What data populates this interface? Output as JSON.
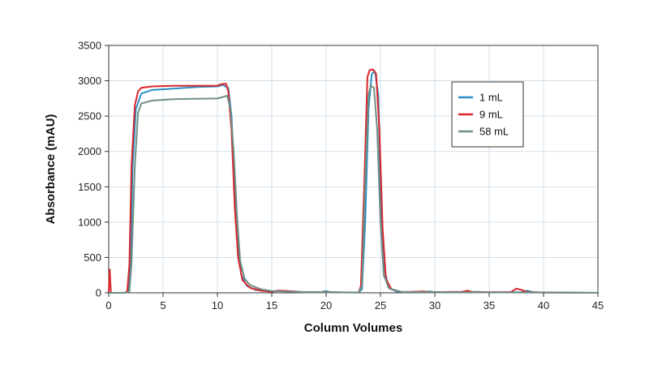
{
  "chart_data": {
    "type": "line",
    "xlabel": "Column Volumes",
    "ylabel": "Absorbance (mAU)",
    "xlim": [
      0,
      45
    ],
    "ylim": [
      0,
      3500
    ],
    "xticks": [
      0,
      5,
      10,
      15,
      20,
      25,
      30,
      35,
      40,
      45
    ],
    "yticks": [
      0,
      500,
      1000,
      1500,
      2000,
      2500,
      3000,
      3500
    ],
    "grid": true,
    "legend_position": "right",
    "series": [
      {
        "name": "1 mL",
        "color": "#2a8fc4",
        "points": [
          [
            0,
            0
          ],
          [
            1.5,
            0
          ],
          [
            1.8,
            20
          ],
          [
            2.0,
            400
          ],
          [
            2.2,
            1800
          ],
          [
            2.5,
            2600
          ],
          [
            3.0,
            2820
          ],
          [
            4.0,
            2870
          ],
          [
            6.0,
            2890
          ],
          [
            8.0,
            2910
          ],
          [
            10.0,
            2920
          ],
          [
            10.5,
            2940
          ],
          [
            11.0,
            2900
          ],
          [
            11.3,
            2500
          ],
          [
            11.6,
            1500
          ],
          [
            11.9,
            600
          ],
          [
            12.2,
            250
          ],
          [
            12.7,
            100
          ],
          [
            13.5,
            40
          ],
          [
            15.0,
            20
          ],
          [
            16.0,
            25
          ],
          [
            18.0,
            10
          ],
          [
            19.5,
            10
          ],
          [
            20.0,
            25
          ],
          [
            20.5,
            5
          ],
          [
            23.0,
            5
          ],
          [
            23.3,
            50
          ],
          [
            23.6,
            1000
          ],
          [
            23.9,
            2600
          ],
          [
            24.2,
            3100
          ],
          [
            24.5,
            3130
          ],
          [
            24.8,
            2800
          ],
          [
            25.0,
            1500
          ],
          [
            25.3,
            400
          ],
          [
            25.7,
            80
          ],
          [
            26.5,
            15
          ],
          [
            29.0,
            10
          ],
          [
            29.5,
            20
          ],
          [
            30.0,
            10
          ],
          [
            31.0,
            5
          ],
          [
            34.0,
            15
          ],
          [
            35.0,
            5
          ],
          [
            38.0,
            10
          ],
          [
            38.5,
            30
          ],
          [
            39.0,
            10
          ],
          [
            40.0,
            5
          ],
          [
            45.0,
            0
          ]
        ]
      },
      {
        "name": "9 mL",
        "color": "#d9262b",
        "points": [
          [
            0,
            0
          ],
          [
            0.1,
            330
          ],
          [
            0.2,
            0
          ],
          [
            1.5,
            0
          ],
          [
            1.7,
            20
          ],
          [
            1.9,
            400
          ],
          [
            2.1,
            1800
          ],
          [
            2.4,
            2650
          ],
          [
            2.7,
            2850
          ],
          [
            3.0,
            2900
          ],
          [
            4.0,
            2920
          ],
          [
            6.0,
            2930
          ],
          [
            8.0,
            2930
          ],
          [
            10.0,
            2930
          ],
          [
            10.3,
            2950
          ],
          [
            10.8,
            2960
          ],
          [
            11.0,
            2850
          ],
          [
            11.3,
            2300
          ],
          [
            11.6,
            1200
          ],
          [
            11.9,
            500
          ],
          [
            12.3,
            180
          ],
          [
            13.0,
            70
          ],
          [
            14.0,
            30
          ],
          [
            15.0,
            15
          ],
          [
            15.5,
            30
          ],
          [
            16.0,
            30
          ],
          [
            18.0,
            10
          ],
          [
            20.0,
            10
          ],
          [
            23.0,
            5
          ],
          [
            23.2,
            100
          ],
          [
            23.5,
            1500
          ],
          [
            23.8,
            3050
          ],
          [
            24.0,
            3150
          ],
          [
            24.3,
            3160
          ],
          [
            24.6,
            3100
          ],
          [
            24.9,
            2300
          ],
          [
            25.2,
            900
          ],
          [
            25.5,
            200
          ],
          [
            26.0,
            50
          ],
          [
            27.0,
            10
          ],
          [
            29.0,
            20
          ],
          [
            29.5,
            10
          ],
          [
            32.5,
            15
          ],
          [
            33.0,
            30
          ],
          [
            33.5,
            10
          ],
          [
            37.0,
            10
          ],
          [
            37.5,
            60
          ],
          [
            38.0,
            40
          ],
          [
            38.5,
            10
          ],
          [
            40.0,
            5
          ],
          [
            45.0,
            0
          ]
        ]
      },
      {
        "name": "58 mL",
        "color": "#6e8f87",
        "points": [
          [
            0,
            0
          ],
          [
            1.6,
            0
          ],
          [
            1.9,
            20
          ],
          [
            2.1,
            400
          ],
          [
            2.4,
            1800
          ],
          [
            2.7,
            2550
          ],
          [
            3.0,
            2680
          ],
          [
            4.0,
            2720
          ],
          [
            6.0,
            2740
          ],
          [
            8.0,
            2745
          ],
          [
            10.0,
            2750
          ],
          [
            10.5,
            2770
          ],
          [
            10.9,
            2790
          ],
          [
            11.2,
            2600
          ],
          [
            11.5,
            2000
          ],
          [
            11.8,
            1100
          ],
          [
            12.1,
            450
          ],
          [
            12.5,
            200
          ],
          [
            13.0,
            110
          ],
          [
            14.0,
            50
          ],
          [
            15.0,
            25
          ],
          [
            16.0,
            20
          ],
          [
            18.0,
            10
          ],
          [
            23.0,
            5
          ],
          [
            23.3,
            100
          ],
          [
            23.6,
            1600
          ],
          [
            23.9,
            2800
          ],
          [
            24.1,
            2930
          ],
          [
            24.4,
            2900
          ],
          [
            24.7,
            2300
          ],
          [
            25.0,
            1000
          ],
          [
            25.3,
            250
          ],
          [
            25.8,
            60
          ],
          [
            27.0,
            10
          ],
          [
            45.0,
            0
          ]
        ]
      }
    ]
  }
}
